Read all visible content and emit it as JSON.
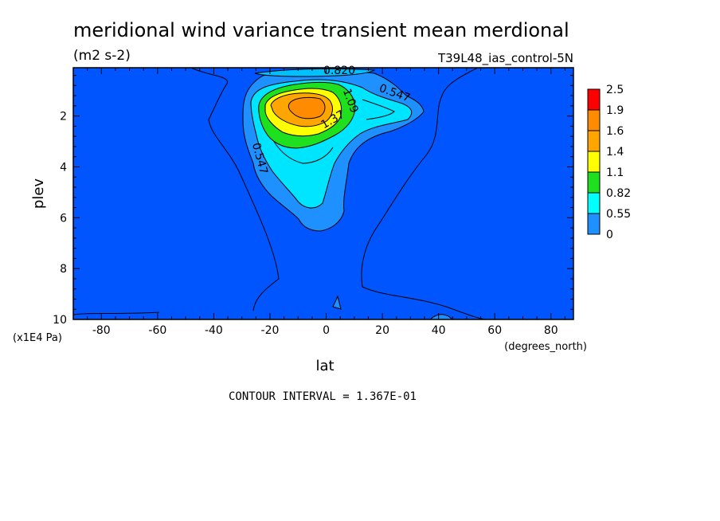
{
  "chart_data": {
    "type": "contour",
    "title": "meridional wind variance transient mean merdional",
    "units": "(m2 s-2)",
    "run_label": "T39L48_ias_control-5N",
    "xlabel": "lat",
    "xunits": "(degrees_north)",
    "ylabel": "plev",
    "yunits": "(x1E4 Pa)",
    "xlim": [
      -90,
      88
    ],
    "ylim": [
      10,
      0.1
    ],
    "x_ticks": [
      -80,
      -60,
      -40,
      -20,
      0,
      20,
      40,
      60,
      80
    ],
    "y_ticks": [
      2,
      4,
      6,
      8,
      10
    ],
    "contour_interval_text": "CONTOUR INTERVAL = 1.367E-01",
    "contour_labels": [
      "0.820",
      "0.547",
      "0.547",
      "1.09",
      "1.37"
    ],
    "colorbar": {
      "levels": [
        "2.5",
        "1.9",
        "1.6",
        "1.4",
        "1.1",
        "0.82",
        "0.55",
        "0"
      ],
      "colors": [
        "#ff0000",
        "#ff8c00",
        "#ffa500",
        "#ffff00",
        "#1ee01e",
        "#00ffff",
        "#1e90ff",
        "#0055ff"
      ]
    },
    "regions": [
      {
        "name": "0-0.55",
        "color": "#0055ff"
      },
      {
        "name": "0.55-0.82",
        "color": "#1e90ff"
      },
      {
        "name": "0.82-1.1",
        "color": "#00e5ff"
      },
      {
        "name": "1.1-1.4",
        "color": "#1ee01e"
      },
      {
        "name": "1.4-1.6",
        "color": "#ffff00"
      },
      {
        "name": "1.6-1.9",
        "color": "#ffa500"
      },
      {
        "name": "1.9-2.5",
        "color": "#ff8c00"
      }
    ]
  }
}
